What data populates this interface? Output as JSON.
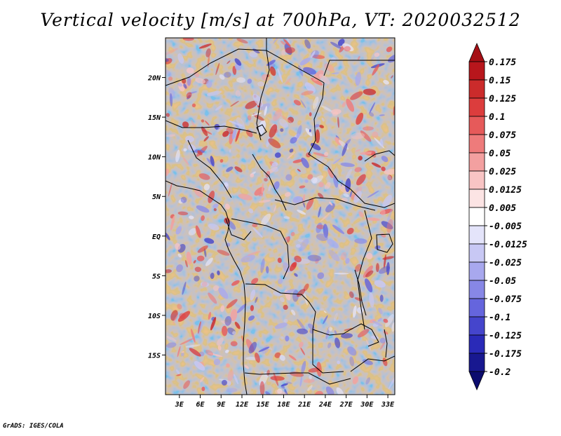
{
  "title": "Vertical velocity [m/s] at 700hPa, VT: 2020032512",
  "credit": "GrADS: IGES/COLA",
  "map": {
    "lon_range": [
      1,
      34
    ],
    "lat_range": [
      -20,
      25
    ],
    "lon_ticks": [
      "3E",
      "6E",
      "9E",
      "12E",
      "15E",
      "18E",
      "21E",
      "24E",
      "27E",
      "30E",
      "33E"
    ],
    "lat_ticks": [
      "20N",
      "15N",
      "10N",
      "5N",
      "EQ",
      "5S",
      "10S",
      "15S"
    ]
  },
  "colorbar": {
    "levels": [
      "0.175",
      "0.15",
      "0.125",
      "0.1",
      "0.075",
      "0.05",
      "0.025",
      "0.0125",
      "0.005",
      "-0.005",
      "-0.0125",
      "-0.025",
      "-0.05",
      "-0.075",
      "-0.1",
      "-0.125",
      "-0.175",
      "-0.2"
    ],
    "colors": [
      "#a50f15",
      "#b8161c",
      "#cb2b2b",
      "#dc3d3d",
      "#e65a5a",
      "#ee7b7b",
      "#f3a0a0",
      "#f8c4c4",
      "#fce4e4",
      "#ffffff",
      "#e4e4fa",
      "#c8c8f4",
      "#a8a8ee",
      "#8787e6",
      "#6565dd",
      "#4545cc",
      "#2a2ab8",
      "#181890",
      "#0c0c6e"
    ]
  }
}
